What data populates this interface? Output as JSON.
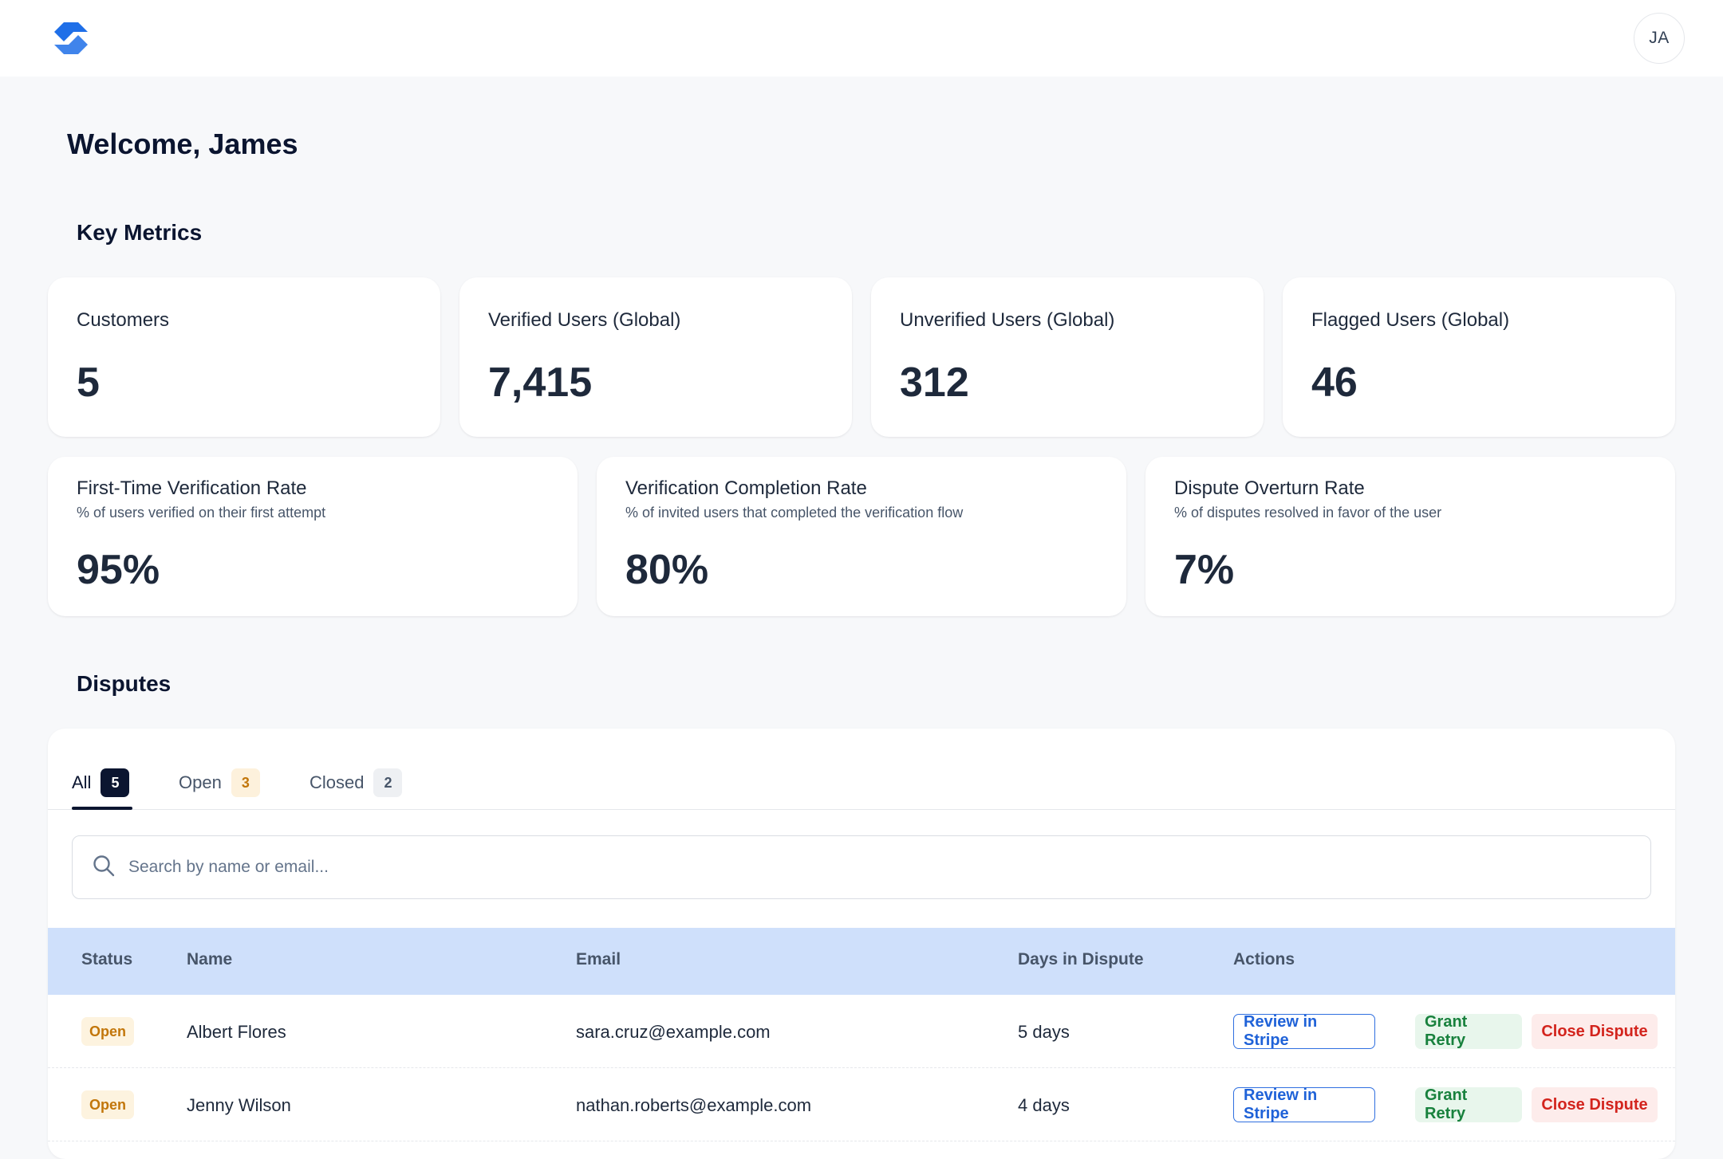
{
  "header": {
    "avatar_initials": "JA"
  },
  "welcome": "Welcome, James",
  "key_metrics": {
    "title": "Key Metrics",
    "cards": [
      {
        "label": "Customers",
        "value": "5"
      },
      {
        "label": "Verified Users (Global)",
        "value": "7,415"
      },
      {
        "label": "Unverified Users (Global)",
        "value": "312"
      },
      {
        "label": "Flagged Users (Global)",
        "value": "46"
      }
    ],
    "rates": [
      {
        "label": "First-Time Verification Rate",
        "sub": "% of users verified on their first attempt",
        "value": "95%"
      },
      {
        "label": "Verification Completion Rate",
        "sub": "% of invited users that completed the verification flow",
        "value": "80%"
      },
      {
        "label": "Dispute Overturn Rate",
        "sub": "% of disputes resolved in favor of the user",
        "value": "7%"
      }
    ]
  },
  "disputes": {
    "title": "Disputes",
    "tabs": [
      {
        "label": "All",
        "count": "5"
      },
      {
        "label": "Open",
        "count": "3"
      },
      {
        "label": "Closed",
        "count": "2"
      }
    ],
    "search_placeholder": "Search by name or email...",
    "columns": [
      "Status",
      "Name",
      "Email",
      "Days in Dispute",
      "Actions"
    ],
    "rows": [
      {
        "status": "Open",
        "name": "Albert Flores",
        "email": "sara.cruz@example.com",
        "days": "5 days",
        "review": "Review in Stripe",
        "grant": "Grant Retry",
        "close": "Close Dispute"
      },
      {
        "status": "Open",
        "name": "Jenny Wilson",
        "email": "nathan.roberts@example.com",
        "days": "4 days",
        "review": "Review in Stripe",
        "grant": "Grant Retry",
        "close": "Close Dispute"
      }
    ]
  },
  "colors": {
    "brand": "#1f6fe8",
    "table_header": "#cfe0fb",
    "open_badge_bg": "#fdf3df",
    "open_badge_text": "#c2760a"
  }
}
